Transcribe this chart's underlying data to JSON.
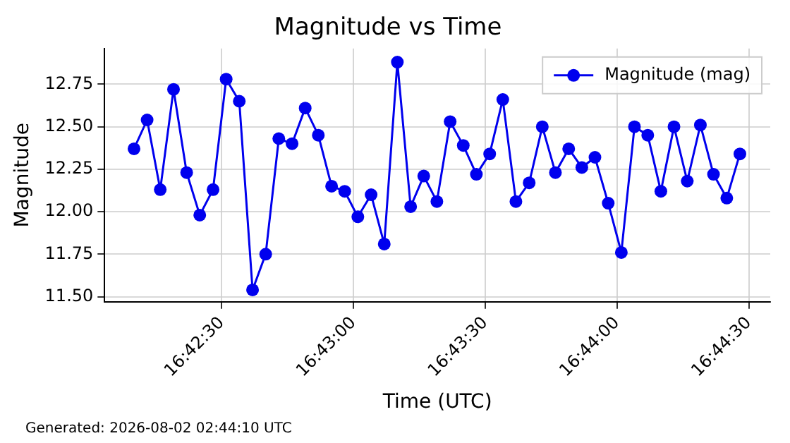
{
  "chart_data": {
    "type": "line",
    "title": "Magnitude vs Time",
    "xlabel": "Time (UTC)",
    "ylabel": "Magnitude",
    "annotations": [
      "Generated: 2026-08-02 02:44:10 UTC"
    ],
    "x": [
      16.70278,
      16.70361,
      16.70444,
      16.70528,
      16.70611,
      16.70694,
      16.70778,
      16.70861,
      16.70944,
      16.71028,
      16.71111,
      16.71194,
      16.71278,
      16.71361,
      16.71444,
      16.71528,
      16.71611,
      16.71694,
      16.71778,
      16.71861,
      16.71944,
      16.72028,
      16.72111,
      16.72194,
      16.72278,
      16.72361,
      16.72444,
      16.72528,
      16.72611,
      16.72694,
      16.72778,
      16.72861,
      16.72944,
      16.73028,
      16.73111,
      16.73194,
      16.73278,
      16.73361,
      16.73444,
      16.73528,
      16.73611,
      16.73694,
      16.73778,
      16.73861,
      16.73944,
      16.74028,
      16.74111
    ],
    "series": [
      {
        "name": "Magnitude (mag)",
        "color": "#0000ee",
        "values": [
          12.37,
          12.54,
          12.13,
          12.72,
          12.23,
          11.98,
          12.13,
          12.78,
          12.65,
          11.54,
          11.75,
          12.43,
          12.4,
          12.61,
          12.45,
          12.15,
          12.12,
          11.97,
          12.1,
          11.81,
          12.88,
          12.03,
          12.21,
          12.06,
          12.53,
          12.39,
          12.22,
          12.34,
          12.66,
          12.06,
          12.17,
          12.5,
          12.23,
          12.37,
          12.26,
          12.32,
          12.05,
          11.76,
          12.5,
          12.45,
          12.12,
          12.5,
          12.18,
          12.51,
          12.22,
          12.08,
          12.34
        ]
      }
    ],
    "xlim": [
      16.70092,
      16.74303
    ],
    "xticks": [
      {
        "value": 16.70833,
        "label": "16:42:30"
      },
      {
        "value": 16.71667,
        "label": "16:43:00"
      },
      {
        "value": 16.725,
        "label": "16:43:30"
      },
      {
        "value": 16.73333,
        "label": "16:44:00"
      },
      {
        "value": 16.74167,
        "label": "16:44:30"
      }
    ],
    "ylim": [
      11.47,
      12.96
    ],
    "yticks": [
      {
        "value": 11.5,
        "label": "11.50"
      },
      {
        "value": 11.75,
        "label": "11.75"
      },
      {
        "value": 12,
        "label": "12.00"
      },
      {
        "value": 12.25,
        "label": "12.25"
      },
      {
        "value": 12.5,
        "label": "12.50"
      },
      {
        "value": 12.75,
        "label": "12.75"
      }
    ],
    "grid": true,
    "legend": "top right",
    "marker": "circle",
    "line_style": "solid"
  }
}
